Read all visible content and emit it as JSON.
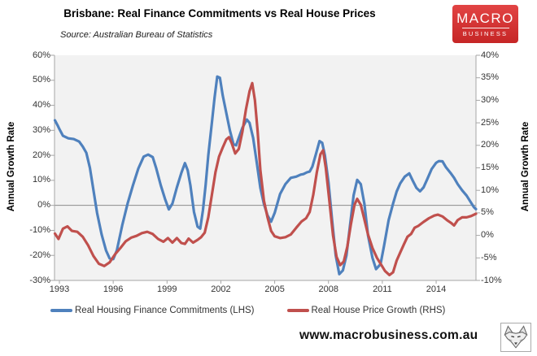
{
  "header": {
    "title": "Brisbane: Real Finance Commitments vs Real House Prices",
    "source": "Source: Australian Bureau of Statistics",
    "logo": {
      "line1": "MACRO",
      "line2": "BUSINESS",
      "bg_color": "#D32F2F"
    }
  },
  "footer": {
    "url": "www.macrobusiness.com.au",
    "wolf_icon": "wolf-head-logo"
  },
  "chart_data": {
    "type": "line",
    "title": "Brisbane: Real Finance Commitments vs Real House Prices",
    "plot_bg": "#F2F2F2",
    "axis_line_color": "#A6A6A6",
    "zero_line_color": "#8C8C8C",
    "gridlines": "only LHS 0% horizontal line",
    "legend_position": "bottom",
    "x_axis": {
      "tick_labels": [
        "1993",
        "1996",
        "1999",
        "2002",
        "2005",
        "2008",
        "2011",
        "2014"
      ],
      "tick_years": [
        1993,
        1996,
        1999,
        2002,
        2005,
        2008,
        2011,
        2014
      ],
      "range": [
        1992.75,
        2016.3
      ]
    },
    "left_axis": {
      "label": "Annual Growth Rate",
      "min": -30,
      "max": 60,
      "step": 10,
      "unit": "%"
    },
    "right_axis": {
      "label": "Annual Growth Rate",
      "min": -10,
      "max": 40,
      "step": 5,
      "unit": "%"
    },
    "series": [
      {
        "name": "Real Housing Finance Commitments (LHS)",
        "axis": "left",
        "color": "#4F81BD",
        "points": [
          [
            1992.75,
            34
          ],
          [
            1992.9,
            32
          ],
          [
            1993.0,
            30.5
          ],
          [
            1993.2,
            27.8
          ],
          [
            1993.5,
            26.8
          ],
          [
            1993.8,
            26.5
          ],
          [
            1994.1,
            25.5
          ],
          [
            1994.3,
            23.5
          ],
          [
            1994.5,
            21
          ],
          [
            1994.7,
            15
          ],
          [
            1994.9,
            6
          ],
          [
            1995.1,
            -3
          ],
          [
            1995.35,
            -11.5
          ],
          [
            1995.6,
            -18
          ],
          [
            1995.8,
            -21.2
          ],
          [
            1996.0,
            -21.5
          ],
          [
            1996.2,
            -18
          ],
          [
            1996.5,
            -8
          ],
          [
            1996.8,
            0.7
          ],
          [
            1997.1,
            8
          ],
          [
            1997.4,
            14.7
          ],
          [
            1997.7,
            19.5
          ],
          [
            1997.95,
            20.3
          ],
          [
            1998.2,
            19.3
          ],
          [
            1998.4,
            14.7
          ],
          [
            1998.65,
            8
          ],
          [
            1998.9,
            2.3
          ],
          [
            1999.1,
            -1.6
          ],
          [
            1999.3,
            0.7
          ],
          [
            1999.55,
            7.2
          ],
          [
            1999.8,
            13
          ],
          [
            2000.0,
            16.9
          ],
          [
            2000.15,
            14
          ],
          [
            2000.3,
            8
          ],
          [
            2000.5,
            -2.6
          ],
          [
            2000.7,
            -8.5
          ],
          [
            2000.85,
            -9.3
          ],
          [
            2001.0,
            -2
          ],
          [
            2001.15,
            8
          ],
          [
            2001.3,
            20
          ],
          [
            2001.5,
            33
          ],
          [
            2001.65,
            43
          ],
          [
            2001.8,
            51.5
          ],
          [
            2001.95,
            51
          ],
          [
            2002.1,
            44
          ],
          [
            2002.3,
            37
          ],
          [
            2002.5,
            30
          ],
          [
            2002.7,
            24.5
          ],
          [
            2002.85,
            24
          ],
          [
            2003.0,
            27
          ],
          [
            2003.2,
            31
          ],
          [
            2003.45,
            34.3
          ],
          [
            2003.6,
            33
          ],
          [
            2003.8,
            27
          ],
          [
            2004.0,
            17
          ],
          [
            2004.2,
            7
          ],
          [
            2004.4,
            0.5
          ],
          [
            2004.6,
            -4
          ],
          [
            2004.8,
            -6.5
          ],
          [
            2005.0,
            -3
          ],
          [
            2005.3,
            4.5
          ],
          [
            2005.6,
            8.5
          ],
          [
            2005.9,
            11
          ],
          [
            2006.2,
            11.5
          ],
          [
            2006.45,
            12.3
          ],
          [
            2006.6,
            12.5
          ],
          [
            2006.8,
            13.2
          ],
          [
            2006.95,
            13.5
          ],
          [
            2007.1,
            15.5
          ],
          [
            2007.3,
            20.5
          ],
          [
            2007.5,
            25.7
          ],
          [
            2007.65,
            25
          ],
          [
            2007.8,
            20
          ],
          [
            2008.0,
            9
          ],
          [
            2008.2,
            -6
          ],
          [
            2008.4,
            -20
          ],
          [
            2008.6,
            -27.5
          ],
          [
            2008.8,
            -26
          ],
          [
            2009.0,
            -20
          ],
          [
            2009.2,
            -8
          ],
          [
            2009.4,
            4
          ],
          [
            2009.6,
            10.2
          ],
          [
            2009.8,
            8.5
          ],
          [
            2010.0,
            0.5
          ],
          [
            2010.2,
            -12
          ],
          [
            2010.45,
            -21
          ],
          [
            2010.65,
            -25.5
          ],
          [
            2010.9,
            -23.5
          ],
          [
            2011.1,
            -16
          ],
          [
            2011.35,
            -6
          ],
          [
            2011.6,
            0.7
          ],
          [
            2011.8,
            5.5
          ],
          [
            2012.0,
            8.8
          ],
          [
            2012.25,
            11.5
          ],
          [
            2012.5,
            12.8
          ],
          [
            2012.7,
            9.8
          ],
          [
            2012.9,
            7
          ],
          [
            2013.1,
            5.6
          ],
          [
            2013.3,
            7.2
          ],
          [
            2013.5,
            10.4
          ],
          [
            2013.75,
            14.5
          ],
          [
            2014.0,
            17
          ],
          [
            2014.15,
            17.7
          ],
          [
            2014.35,
            17.6
          ],
          [
            2014.55,
            15.2
          ],
          [
            2014.8,
            13
          ],
          [
            2015.0,
            11
          ],
          [
            2015.2,
            8.5
          ],
          [
            2015.45,
            6
          ],
          [
            2015.7,
            3.9
          ],
          [
            2015.9,
            1.6
          ],
          [
            2016.1,
            -0.7
          ],
          [
            2016.25,
            -1.5
          ]
        ]
      },
      {
        "name": "Real House Price Growth (RHS)",
        "axis": "right",
        "color": "#C0504D",
        "points": [
          [
            1992.75,
            0.4
          ],
          [
            1992.95,
            -0.8
          ],
          [
            1993.2,
            1.5
          ],
          [
            1993.45,
            2.0
          ],
          [
            1993.7,
            1.0
          ],
          [
            1994.0,
            0.8
          ],
          [
            1994.3,
            -0.3
          ],
          [
            1994.6,
            -2.2
          ],
          [
            1994.9,
            -4.6
          ],
          [
            1995.2,
            -6.3
          ],
          [
            1995.5,
            -6.8
          ],
          [
            1995.8,
            -6.0
          ],
          [
            1996.1,
            -4.2
          ],
          [
            1996.4,
            -2.8
          ],
          [
            1996.7,
            -1.3
          ],
          [
            1997.0,
            -0.5
          ],
          [
            1997.3,
            -0.1
          ],
          [
            1997.6,
            0.5
          ],
          [
            1997.9,
            0.8
          ],
          [
            1998.2,
            0.3
          ],
          [
            1998.5,
            -0.8
          ],
          [
            1998.8,
            -1.4
          ],
          [
            1999.05,
            -0.6
          ],
          [
            1999.3,
            -1.6
          ],
          [
            1999.55,
            -0.6
          ],
          [
            1999.8,
            -1.7
          ],
          [
            2000.0,
            -1.9
          ],
          [
            2000.2,
            -0.7
          ],
          [
            2000.45,
            -1.6
          ],
          [
            2000.7,
            -1.0
          ],
          [
            2000.9,
            -0.4
          ],
          [
            2001.1,
            0.6
          ],
          [
            2001.3,
            4
          ],
          [
            2001.5,
            9
          ],
          [
            2001.7,
            14
          ],
          [
            2001.9,
            17.5
          ],
          [
            2002.1,
            19.5
          ],
          [
            2002.3,
            21.3
          ],
          [
            2002.45,
            21.8
          ],
          [
            2002.6,
            20.5
          ],
          [
            2002.8,
            18.2
          ],
          [
            2003.0,
            19.2
          ],
          [
            2003.2,
            23
          ],
          [
            2003.4,
            28
          ],
          [
            2003.6,
            32
          ],
          [
            2003.75,
            33.8
          ],
          [
            2003.9,
            30
          ],
          [
            2004.05,
            23
          ],
          [
            2004.2,
            14.5
          ],
          [
            2004.4,
            7.7
          ],
          [
            2004.6,
            4
          ],
          [
            2004.8,
            1
          ],
          [
            2005.0,
            -0.2
          ],
          [
            2005.3,
            -0.6
          ],
          [
            2005.6,
            -0.4
          ],
          [
            2005.9,
            0.2
          ],
          [
            2006.2,
            1.7
          ],
          [
            2006.5,
            3.1
          ],
          [
            2006.75,
            3.8
          ],
          [
            2006.95,
            5.2
          ],
          [
            2007.15,
            9
          ],
          [
            2007.35,
            14
          ],
          [
            2007.55,
            18
          ],
          [
            2007.7,
            18.9
          ],
          [
            2007.85,
            15
          ],
          [
            2008.05,
            7.5
          ],
          [
            2008.25,
            0
          ],
          [
            2008.45,
            -4.8
          ],
          [
            2008.65,
            -6.6
          ],
          [
            2008.85,
            -5.8
          ],
          [
            2009.05,
            -2.5
          ],
          [
            2009.25,
            2.5
          ],
          [
            2009.45,
            6.8
          ],
          [
            2009.6,
            8.1
          ],
          [
            2009.8,
            6.8
          ],
          [
            2010.0,
            3.5
          ],
          [
            2010.2,
            0.2
          ],
          [
            2010.45,
            -2.8
          ],
          [
            2010.7,
            -5
          ],
          [
            2010.95,
            -6.6
          ],
          [
            2011.15,
            -7.9
          ],
          [
            2011.4,
            -8.8
          ],
          [
            2011.6,
            -8.2
          ],
          [
            2011.8,
            -5.6
          ],
          [
            2012.0,
            -3.8
          ],
          [
            2012.2,
            -2
          ],
          [
            2012.4,
            -0.3
          ],
          [
            2012.6,
            0.3
          ],
          [
            2012.8,
            1.7
          ],
          [
            2013.0,
            2.1
          ],
          [
            2013.3,
            3.0
          ],
          [
            2013.6,
            3.8
          ],
          [
            2013.9,
            4.4
          ],
          [
            2014.1,
            4.6
          ],
          [
            2014.35,
            4.2
          ],
          [
            2014.6,
            3.4
          ],
          [
            2014.85,
            2.7
          ],
          [
            2015.0,
            2.2
          ],
          [
            2015.2,
            3.4
          ],
          [
            2015.45,
            4.0
          ],
          [
            2015.7,
            4.0
          ],
          [
            2015.95,
            4.3
          ],
          [
            2016.25,
            4.8
          ]
        ]
      }
    ]
  }
}
